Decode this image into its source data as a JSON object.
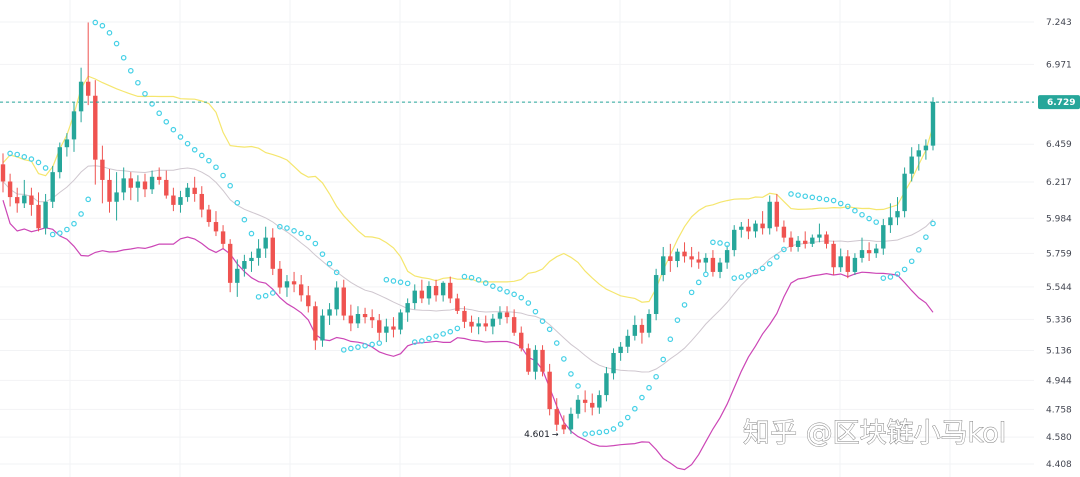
{
  "chart_data": {
    "type": "candlestick",
    "yticks": [
      "7.243",
      "6.971",
      "6.729",
      "6.459",
      "6.217",
      "5.984",
      "5.759",
      "5.544",
      "5.336",
      "5.136",
      "4.944",
      "4.758",
      "4.580",
      "4.408"
    ],
    "ylim": [
      4.4,
      7.3
    ],
    "grid": true,
    "last_price": "6.729",
    "low_marker": "4.601",
    "colors": {
      "up": "#26a69a",
      "down": "#ef5350",
      "bb_upper": "#f5e66e",
      "bb_mid": "#cfc7cf",
      "bb_lower": "#cc46b6",
      "sar": "#44d0e6",
      "price_line": "#26a69a"
    },
    "candles": [
      [
        6.33,
        6.4,
        6.15,
        6.22
      ],
      [
        6.22,
        6.27,
        6.06,
        6.12
      ],
      [
        6.12,
        6.18,
        6.02,
        6.08
      ],
      [
        6.08,
        6.23,
        6.05,
        6.13
      ],
      [
        6.13,
        6.18,
        6.0,
        6.07
      ],
      [
        6.07,
        6.15,
        5.9,
        5.92
      ],
      [
        5.92,
        6.14,
        5.88,
        6.09
      ],
      [
        6.09,
        6.32,
        6.05,
        6.28
      ],
      [
        6.28,
        6.47,
        6.24,
        6.44
      ],
      [
        6.44,
        6.53,
        6.38,
        6.49
      ],
      [
        6.49,
        6.73,
        6.41,
        6.67
      ],
      [
        6.67,
        6.95,
        6.6,
        6.86
      ],
      [
        6.86,
        7.24,
        6.71,
        6.77
      ],
      [
        6.77,
        6.87,
        6.2,
        6.36
      ],
      [
        6.36,
        6.45,
        6.08,
        6.23
      ],
      [
        6.23,
        6.3,
        6.02,
        6.09
      ],
      [
        6.09,
        6.28,
        5.97,
        6.15
      ],
      [
        6.15,
        6.31,
        6.1,
        6.24
      ],
      [
        6.24,
        6.28,
        6.1,
        6.18
      ],
      [
        6.18,
        6.26,
        6.09,
        6.22
      ],
      [
        6.22,
        6.27,
        6.12,
        6.17
      ],
      [
        6.17,
        6.29,
        6.14,
        6.25
      ],
      [
        6.25,
        6.31,
        6.2,
        6.23
      ],
      [
        6.23,
        6.29,
        6.11,
        6.13
      ],
      [
        6.13,
        6.18,
        6.03,
        6.07
      ],
      [
        6.07,
        6.16,
        6.02,
        6.12
      ],
      [
        6.12,
        6.21,
        6.09,
        6.18
      ],
      [
        6.18,
        6.25,
        6.09,
        6.14
      ],
      [
        6.14,
        6.19,
        5.99,
        6.04
      ],
      [
        6.04,
        6.07,
        5.93,
        5.96
      ],
      [
        5.96,
        6.03,
        5.87,
        5.9
      ],
      [
        5.9,
        5.94,
        5.79,
        5.82
      ],
      [
        5.82,
        5.85,
        5.51,
        5.57
      ],
      [
        5.57,
        5.72,
        5.48,
        5.66
      ],
      [
        5.66,
        5.75,
        5.61,
        5.71
      ],
      [
        5.71,
        5.77,
        5.64,
        5.73
      ],
      [
        5.73,
        5.85,
        5.68,
        5.79
      ],
      [
        5.79,
        5.93,
        5.73,
        5.86
      ],
      [
        5.86,
        5.92,
        5.62,
        5.66
      ],
      [
        5.66,
        5.71,
        5.5,
        5.54
      ],
      [
        5.54,
        5.62,
        5.48,
        5.58
      ],
      [
        5.58,
        5.64,
        5.51,
        5.56
      ],
      [
        5.56,
        5.62,
        5.45,
        5.49
      ],
      [
        5.49,
        5.55,
        5.38,
        5.42
      ],
      [
        5.42,
        5.45,
        5.14,
        5.2
      ],
      [
        5.2,
        5.4,
        5.16,
        5.36
      ],
      [
        5.36,
        5.44,
        5.3,
        5.4
      ],
      [
        5.4,
        5.58,
        5.36,
        5.54
      ],
      [
        5.54,
        5.59,
        5.33,
        5.36
      ],
      [
        5.36,
        5.43,
        5.26,
        5.31
      ],
      [
        5.31,
        5.42,
        5.28,
        5.37
      ],
      [
        5.37,
        5.41,
        5.31,
        5.35
      ],
      [
        5.35,
        5.4,
        5.28,
        5.33
      ],
      [
        5.33,
        5.37,
        5.2,
        5.25
      ],
      [
        5.25,
        5.34,
        5.19,
        5.29
      ],
      [
        5.29,
        5.35,
        5.22,
        5.27
      ],
      [
        5.27,
        5.4,
        5.24,
        5.38
      ],
      [
        5.38,
        5.47,
        5.32,
        5.44
      ],
      [
        5.44,
        5.56,
        5.4,
        5.52
      ],
      [
        5.52,
        5.59,
        5.44,
        5.47
      ],
      [
        5.47,
        5.58,
        5.43,
        5.55
      ],
      [
        5.55,
        5.59,
        5.45,
        5.49
      ],
      [
        5.49,
        5.58,
        5.45,
        5.57
      ],
      [
        5.57,
        5.61,
        5.44,
        5.47
      ],
      [
        5.47,
        5.5,
        5.37,
        5.39
      ],
      [
        5.39,
        5.42,
        5.28,
        5.32
      ],
      [
        5.32,
        5.36,
        5.25,
        5.29
      ],
      [
        5.29,
        5.35,
        5.24,
        5.31
      ],
      [
        5.31,
        5.36,
        5.26,
        5.29
      ],
      [
        5.29,
        5.37,
        5.24,
        5.34
      ],
      [
        5.34,
        5.42,
        5.3,
        5.38
      ],
      [
        5.38,
        5.42,
        5.31,
        5.35
      ],
      [
        5.35,
        5.4,
        5.23,
        5.25
      ],
      [
        5.25,
        5.29,
        5.13,
        5.15
      ],
      [
        5.15,
        5.18,
        4.98,
        5.0
      ],
      [
        5.0,
        5.17,
        4.95,
        5.14
      ],
      [
        5.14,
        5.17,
        4.97,
        5.0
      ],
      [
        5.0,
        5.05,
        4.72,
        4.76
      ],
      [
        4.76,
        4.83,
        4.62,
        4.66
      ],
      [
        4.66,
        4.72,
        4.6,
        4.63
      ],
      [
        4.63,
        4.77,
        4.6,
        4.73
      ],
      [
        4.73,
        4.85,
        4.7,
        4.82
      ],
      [
        4.82,
        4.88,
        4.74,
        4.8
      ],
      [
        4.8,
        4.86,
        4.72,
        4.77
      ],
      [
        4.77,
        4.88,
        4.73,
        4.85
      ],
      [
        4.85,
        5.03,
        4.81,
        4.99
      ],
      [
        4.99,
        5.15,
        4.95,
        5.12
      ],
      [
        5.12,
        5.19,
        5.07,
        5.16
      ],
      [
        5.16,
        5.27,
        5.12,
        5.23
      ],
      [
        5.23,
        5.36,
        5.2,
        5.3
      ],
      [
        5.3,
        5.34,
        5.18,
        5.25
      ],
      [
        5.25,
        5.4,
        5.22,
        5.37
      ],
      [
        5.37,
        5.66,
        5.33,
        5.62
      ],
      [
        5.62,
        5.8,
        5.58,
        5.74
      ],
      [
        5.74,
        5.82,
        5.64,
        5.71
      ],
      [
        5.71,
        5.79,
        5.67,
        5.77
      ],
      [
        5.77,
        5.83,
        5.7,
        5.74
      ],
      [
        5.74,
        5.8,
        5.67,
        5.72
      ],
      [
        5.72,
        5.77,
        5.66,
        5.7
      ],
      [
        5.7,
        5.76,
        5.64,
        5.73
      ],
      [
        5.73,
        5.78,
        5.61,
        5.64
      ],
      [
        5.64,
        5.73,
        5.6,
        5.7
      ],
      [
        5.7,
        5.81,
        5.66,
        5.78
      ],
      [
        5.78,
        5.94,
        5.74,
        5.91
      ],
      [
        5.91,
        5.96,
        5.86,
        5.93
      ],
      [
        5.93,
        5.98,
        5.85,
        5.9
      ],
      [
        5.9,
        5.97,
        5.86,
        5.95
      ],
      [
        5.95,
        6.03,
        5.88,
        5.92
      ],
      [
        5.92,
        6.13,
        5.88,
        6.09
      ],
      [
        6.09,
        6.14,
        5.9,
        5.93
      ],
      [
        5.93,
        5.97,
        5.83,
        5.86
      ],
      [
        5.86,
        5.9,
        5.77,
        5.8
      ],
      [
        5.8,
        5.87,
        5.77,
        5.84
      ],
      [
        5.84,
        5.9,
        5.79,
        5.82
      ],
      [
        5.82,
        5.88,
        5.8,
        5.86
      ],
      [
        5.86,
        5.95,
        5.83,
        5.88
      ],
      [
        5.88,
        5.9,
        5.79,
        5.82
      ],
      [
        5.82,
        5.84,
        5.62,
        5.67
      ],
      [
        5.67,
        5.79,
        5.64,
        5.74
      ],
      [
        5.74,
        5.78,
        5.6,
        5.64
      ],
      [
        5.64,
        5.76,
        5.62,
        5.73
      ],
      [
        5.73,
        5.86,
        5.7,
        5.78
      ],
      [
        5.78,
        5.83,
        5.71,
        5.76
      ],
      [
        5.76,
        5.82,
        5.73,
        5.79
      ],
      [
        5.79,
        5.98,
        5.75,
        5.94
      ],
      [
        5.94,
        6.08,
        5.89,
        5.99
      ],
      [
        5.99,
        6.12,
        5.94,
        6.03
      ],
      [
        6.03,
        6.31,
        5.99,
        6.27
      ],
      [
        6.27,
        6.44,
        6.22,
        6.38
      ],
      [
        6.38,
        6.46,
        6.29,
        6.42
      ],
      [
        6.42,
        6.49,
        6.36,
        6.45
      ],
      [
        6.45,
        6.76,
        6.42,
        6.73
      ]
    ]
  },
  "watermark": "知乎 @区块链小马kol"
}
